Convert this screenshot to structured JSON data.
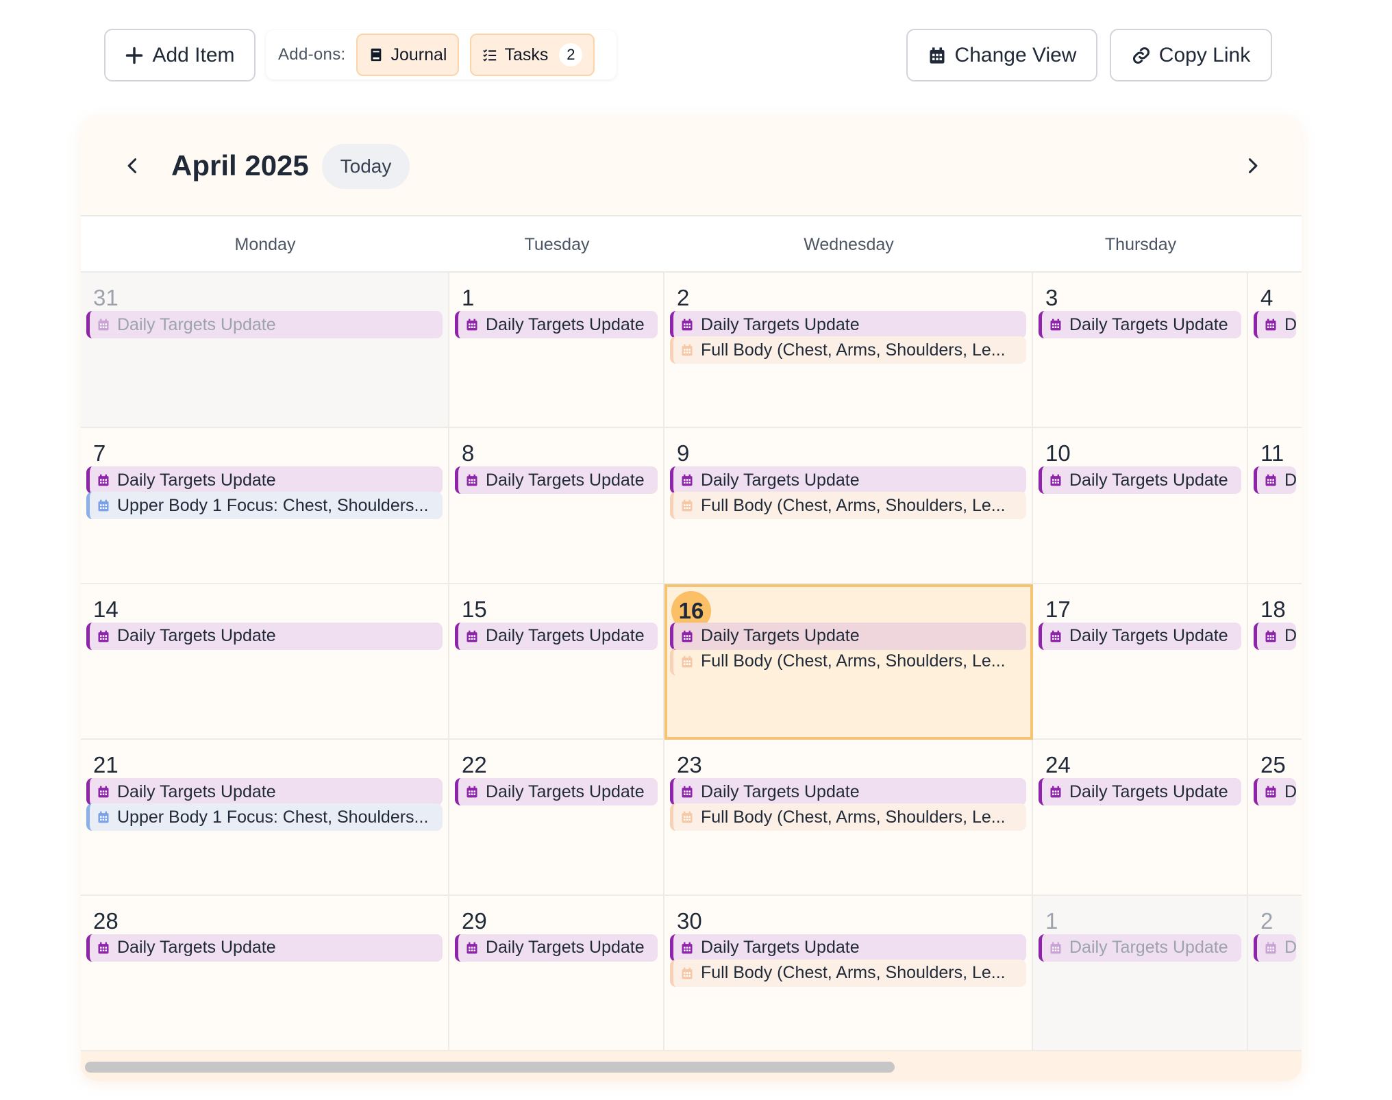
{
  "toolbar": {
    "add_item_label": "Add Item",
    "addons_label": "Add-ons:",
    "journal_label": "Journal",
    "tasks_label": "Tasks",
    "tasks_count": "2",
    "change_view_label": "Change View",
    "copy_link_label": "Copy Link"
  },
  "calendar": {
    "month_title": "April 2025",
    "today_label": "Today",
    "weekdays": [
      "Monday",
      "Tuesday",
      "Wednesday",
      "Thursday"
    ],
    "weeks": [
      {
        "days": [
          {
            "num": "31",
            "outside": true,
            "events": [
              {
                "type": "daily",
                "text": "Daily Targets Update"
              }
            ]
          },
          {
            "num": "1",
            "events": [
              {
                "type": "daily",
                "text": "Daily Targets Update"
              }
            ]
          },
          {
            "num": "2",
            "events": [
              {
                "type": "daily",
                "text": "Daily Targets Update"
              },
              {
                "type": "full",
                "text": "Full Body (Chest, Arms, Shoulders, Le..."
              }
            ]
          },
          {
            "num": "3",
            "events": [
              {
                "type": "daily",
                "text": "Daily Targets Update"
              }
            ]
          },
          {
            "num": "4",
            "events": [
              {
                "type": "daily",
                "text": "Da"
              }
            ]
          }
        ]
      },
      {
        "days": [
          {
            "num": "7",
            "events": [
              {
                "type": "daily",
                "text": "Daily Targets Update"
              },
              {
                "type": "upper",
                "text": "Upper Body 1 Focus: Chest, Shoulders..."
              }
            ]
          },
          {
            "num": "8",
            "events": [
              {
                "type": "daily",
                "text": "Daily Targets Update"
              }
            ]
          },
          {
            "num": "9",
            "events": [
              {
                "type": "daily",
                "text": "Daily Targets Update"
              },
              {
                "type": "full",
                "text": "Full Body (Chest, Arms, Shoulders, Le..."
              }
            ]
          },
          {
            "num": "10",
            "events": [
              {
                "type": "daily",
                "text": "Daily Targets Update"
              }
            ]
          },
          {
            "num": "11",
            "events": [
              {
                "type": "daily",
                "text": "Da"
              }
            ]
          }
        ]
      },
      {
        "days": [
          {
            "num": "14",
            "events": [
              {
                "type": "daily",
                "text": "Daily Targets Update"
              }
            ]
          },
          {
            "num": "15",
            "events": [
              {
                "type": "daily",
                "text": "Daily Targets Update"
              }
            ]
          },
          {
            "num": "16",
            "today": true,
            "events": [
              {
                "type": "daily",
                "text": "Daily Targets Update"
              },
              {
                "type": "full",
                "text": "Full Body (Chest, Arms, Shoulders, Le..."
              }
            ]
          },
          {
            "num": "17",
            "events": [
              {
                "type": "daily",
                "text": "Daily Targets Update"
              }
            ]
          },
          {
            "num": "18",
            "events": [
              {
                "type": "daily",
                "text": "Da"
              }
            ]
          }
        ]
      },
      {
        "days": [
          {
            "num": "21",
            "events": [
              {
                "type": "daily",
                "text": "Daily Targets Update"
              },
              {
                "type": "upper",
                "text": "Upper Body 1 Focus: Chest, Shoulders..."
              }
            ]
          },
          {
            "num": "22",
            "events": [
              {
                "type": "daily",
                "text": "Daily Targets Update"
              }
            ]
          },
          {
            "num": "23",
            "events": [
              {
                "type": "daily",
                "text": "Daily Targets Update"
              },
              {
                "type": "full",
                "text": "Full Body (Chest, Arms, Shoulders, Le..."
              }
            ]
          },
          {
            "num": "24",
            "events": [
              {
                "type": "daily",
                "text": "Daily Targets Update"
              }
            ]
          },
          {
            "num": "25",
            "events": [
              {
                "type": "daily",
                "text": "Da"
              }
            ]
          }
        ]
      },
      {
        "days": [
          {
            "num": "28",
            "events": [
              {
                "type": "daily",
                "text": "Daily Targets Update"
              }
            ]
          },
          {
            "num": "29",
            "events": [
              {
                "type": "daily",
                "text": "Daily Targets Update"
              }
            ]
          },
          {
            "num": "30",
            "events": [
              {
                "type": "daily",
                "text": "Daily Targets Update"
              },
              {
                "type": "full",
                "text": "Full Body (Chest, Arms, Shoulders, Le..."
              }
            ]
          },
          {
            "num": "1",
            "outside": true,
            "events": [
              {
                "type": "daily",
                "text": "Daily Targets Update"
              }
            ]
          },
          {
            "num": "2",
            "outside": true,
            "events": [
              {
                "type": "daily",
                "text": "Da"
              }
            ]
          }
        ]
      }
    ]
  },
  "colors": {
    "daily_accent": "#8e24aa",
    "daily_bg": "#f0dff0",
    "full_accent": "#f8d2b6",
    "upper_accent": "#8ab0ec",
    "today_highlight": "#fbbf66"
  },
  "icons": {
    "add": "plus-icon",
    "journal": "book-icon",
    "tasks": "checklist-icon",
    "change_view": "calendar-icon",
    "copy_link": "link-icon",
    "prev": "chevron-left-icon",
    "next": "chevron-right-icon",
    "event": "calendar-icon"
  }
}
